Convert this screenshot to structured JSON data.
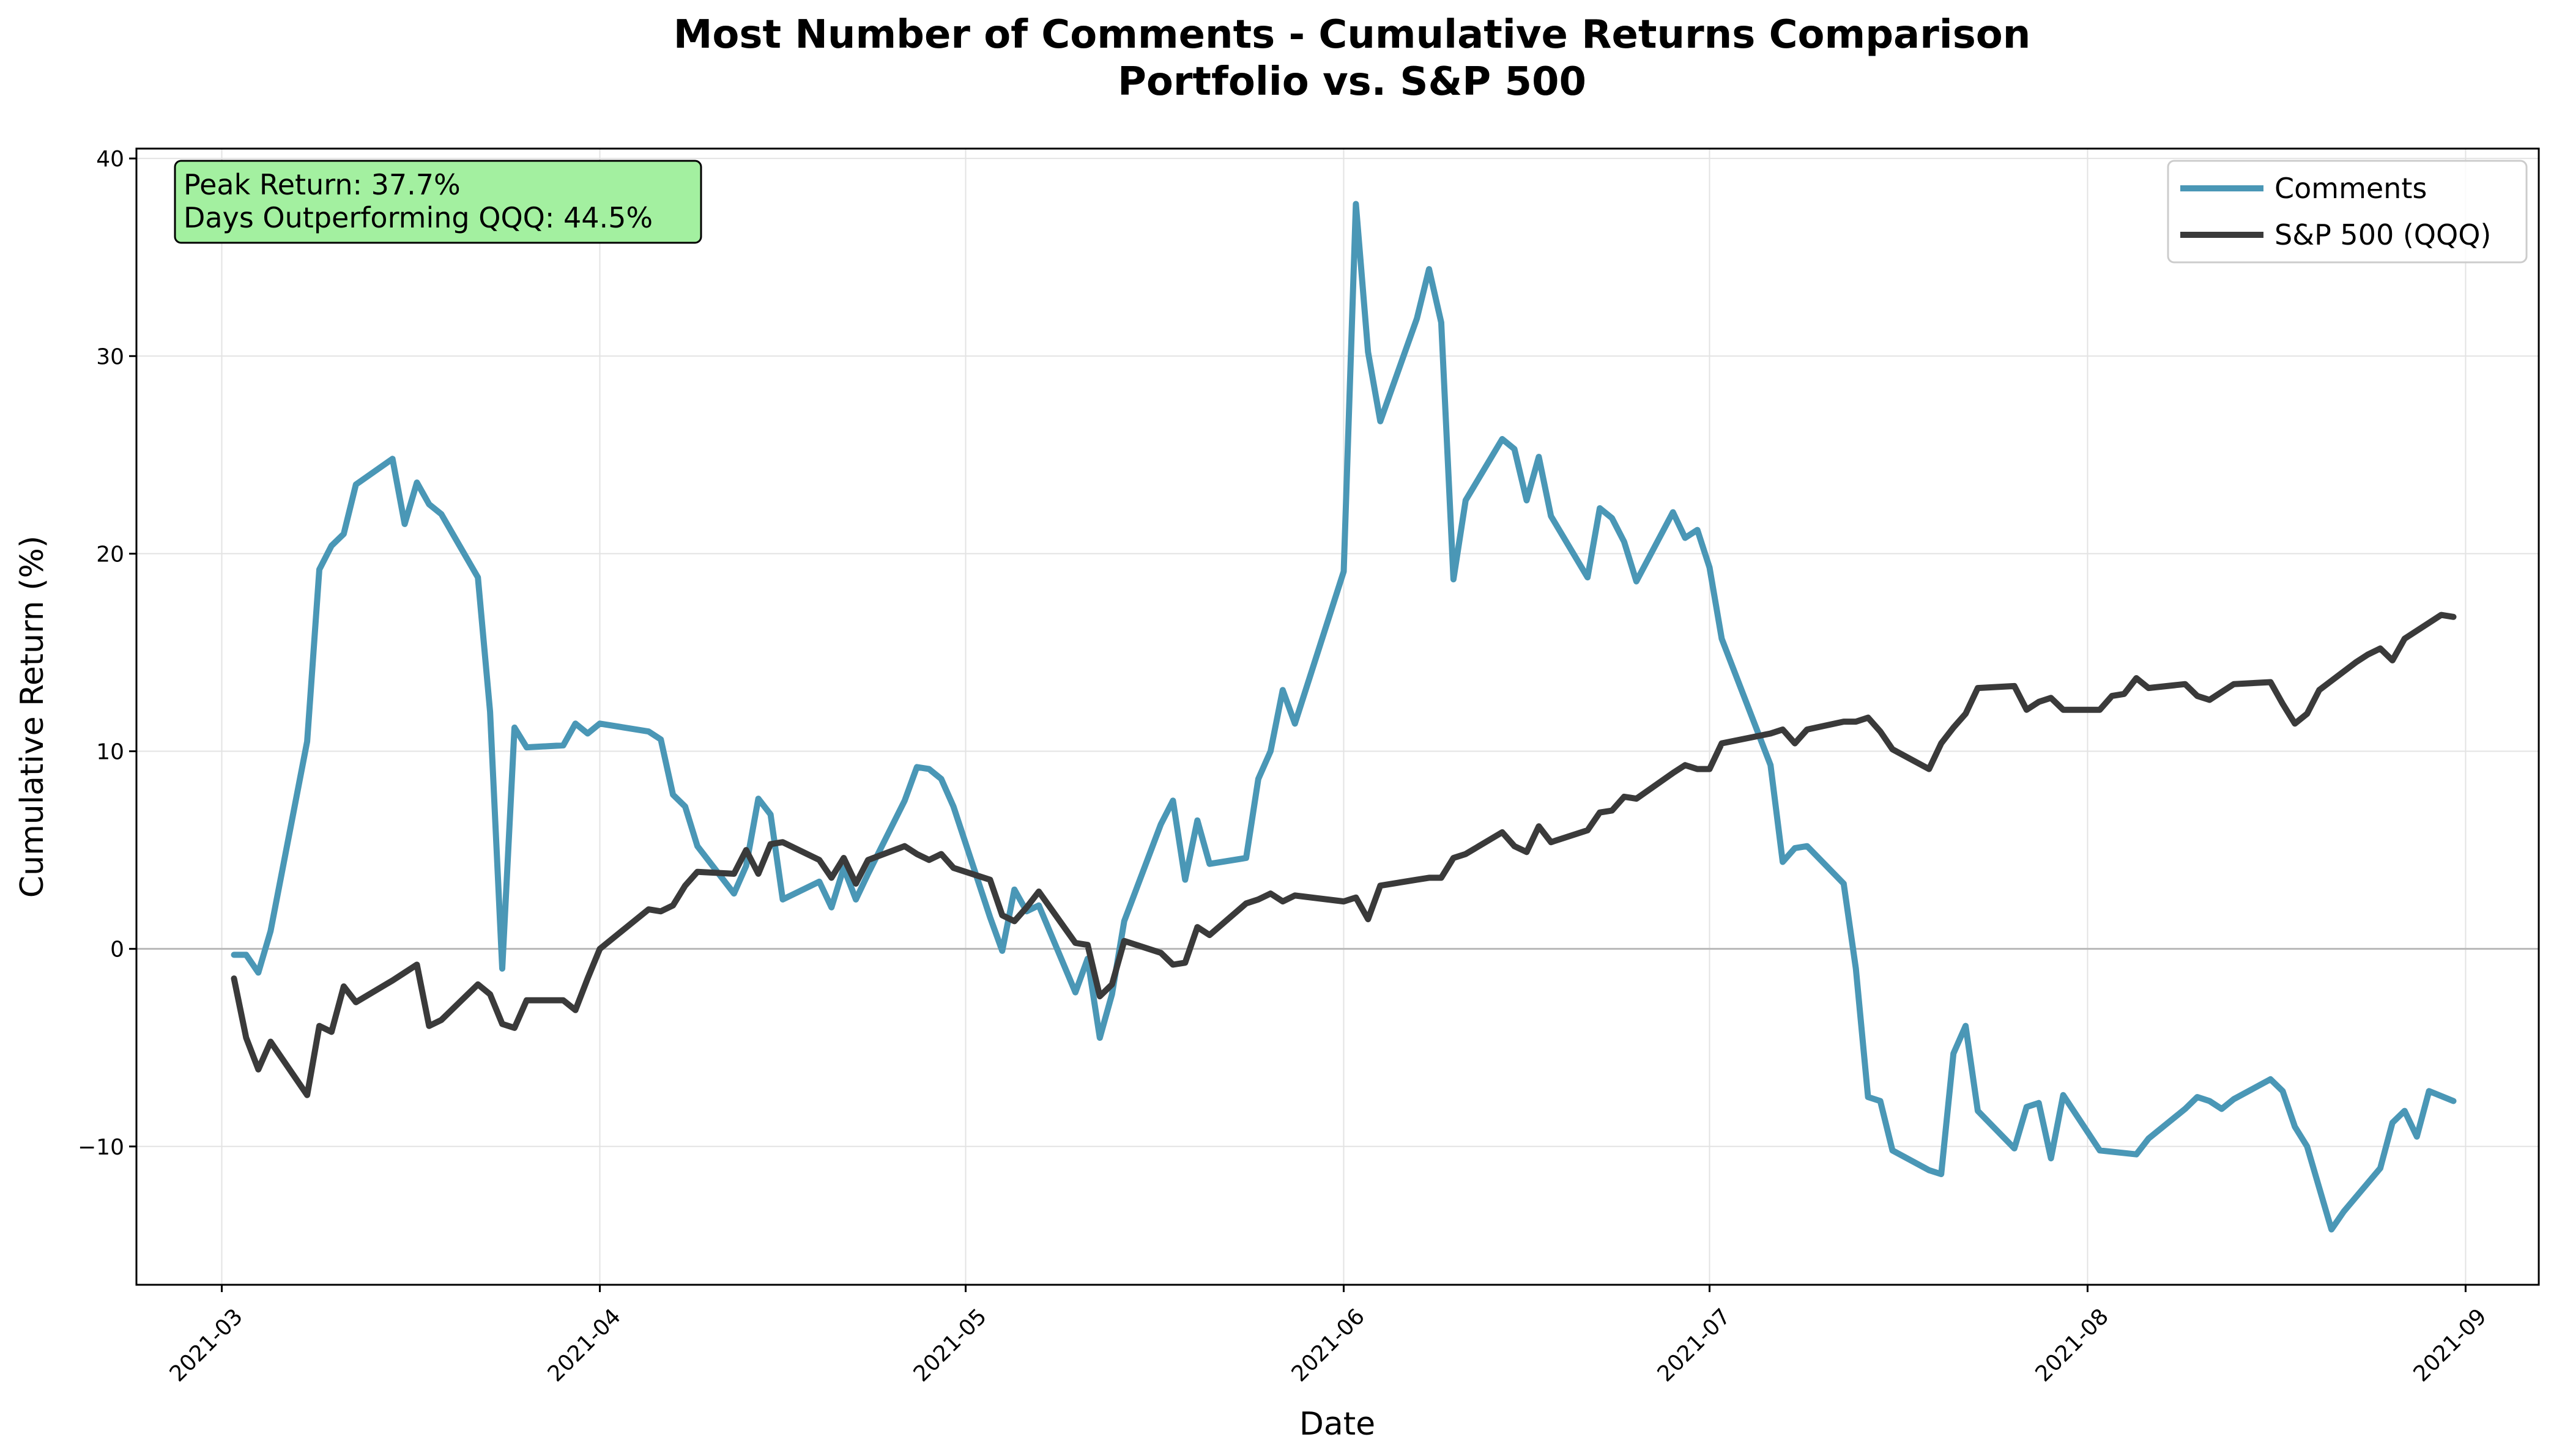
{
  "chart_data": {
    "type": "line",
    "title": "Most Number of Comments - Cumulative Returns Comparison",
    "subtitle": "Portfolio vs. S&P 500",
    "xlabel": "Date",
    "ylabel": "Cumulative Return (%)",
    "x_ticks": [
      "2021-03",
      "2021-04",
      "2021-05",
      "2021-06",
      "2021-07",
      "2021-08",
      "2021-09"
    ],
    "x_range": [
      "2021-02-22",
      "2021-09-07"
    ],
    "y_ticks": [
      -10,
      0,
      10,
      20,
      30,
      40
    ],
    "ylim": [
      -17,
      40.5
    ],
    "grid": true,
    "zero_line": true,
    "legend_position": "top-right",
    "annotation": {
      "lines": [
        "Peak Return: 37.7%",
        "Days Outperforming QQQ: 44.5%"
      ],
      "background": "#a3f0a0"
    },
    "series": [
      {
        "name": "Comments",
        "color": "#4a97b6",
        "points": [
          [
            "2021-03-02",
            -0.3
          ],
          [
            "2021-03-03",
            -0.3
          ],
          [
            "2021-03-04",
            -1.2
          ],
          [
            "2021-03-05",
            0.9
          ],
          [
            "2021-03-08",
            10.5
          ],
          [
            "2021-03-09",
            19.2
          ],
          [
            "2021-03-10",
            20.4
          ],
          [
            "2021-03-11",
            21.0
          ],
          [
            "2021-03-12",
            23.5
          ],
          [
            "2021-03-15",
            24.8
          ],
          [
            "2021-03-16",
            21.5
          ],
          [
            "2021-03-17",
            23.6
          ],
          [
            "2021-03-18",
            22.5
          ],
          [
            "2021-03-19",
            22.0
          ],
          [
            "2021-03-22",
            18.8
          ],
          [
            "2021-03-23",
            12.0
          ],
          [
            "2021-03-24",
            -1.0
          ],
          [
            "2021-03-25",
            11.2
          ],
          [
            "2021-03-26",
            10.2
          ],
          [
            "2021-03-29",
            10.3
          ],
          [
            "2021-03-30",
            11.4
          ],
          [
            "2021-03-31",
            10.9
          ],
          [
            "2021-04-01",
            11.4
          ],
          [
            "2021-04-05",
            11.0
          ],
          [
            "2021-04-06",
            10.6
          ],
          [
            "2021-04-07",
            7.8
          ],
          [
            "2021-04-08",
            7.2
          ],
          [
            "2021-04-09",
            5.2
          ],
          [
            "2021-04-12",
            2.8
          ],
          [
            "2021-04-13",
            4.2
          ],
          [
            "2021-04-14",
            7.6
          ],
          [
            "2021-04-15",
            6.8
          ],
          [
            "2021-04-16",
            2.5
          ],
          [
            "2021-04-19",
            3.4
          ],
          [
            "2021-04-20",
            2.1
          ],
          [
            "2021-04-21",
            4.1
          ],
          [
            "2021-04-22",
            2.5
          ],
          [
            "2021-04-23",
            3.8
          ],
          [
            "2021-04-26",
            7.5
          ],
          [
            "2021-04-27",
            9.2
          ],
          [
            "2021-04-28",
            9.1
          ],
          [
            "2021-04-29",
            8.6
          ],
          [
            "2021-04-30",
            7.2
          ],
          [
            "2021-05-03",
            1.6
          ],
          [
            "2021-05-04",
            -0.1
          ],
          [
            "2021-05-05",
            3.0
          ],
          [
            "2021-05-06",
            1.9
          ],
          [
            "2021-05-07",
            2.2
          ],
          [
            "2021-05-10",
            -2.2
          ],
          [
            "2021-05-11",
            -0.5
          ],
          [
            "2021-05-12",
            -4.5
          ],
          [
            "2021-05-13",
            -2.3
          ],
          [
            "2021-05-14",
            1.4
          ],
          [
            "2021-05-17",
            6.3
          ],
          [
            "2021-05-18",
            7.5
          ],
          [
            "2021-05-19",
            3.5
          ],
          [
            "2021-05-20",
            6.5
          ],
          [
            "2021-05-21",
            4.3
          ],
          [
            "2021-05-24",
            4.6
          ],
          [
            "2021-05-25",
            8.6
          ],
          [
            "2021-05-26",
            10.0
          ],
          [
            "2021-05-27",
            13.1
          ],
          [
            "2021-05-28",
            11.4
          ],
          [
            "2021-06-01",
            19.1
          ],
          [
            "2021-06-02",
            37.7
          ],
          [
            "2021-06-03",
            30.2
          ],
          [
            "2021-06-04",
            26.7
          ],
          [
            "2021-06-07",
            31.9
          ],
          [
            "2021-06-08",
            34.4
          ],
          [
            "2021-06-09",
            31.7
          ],
          [
            "2021-06-10",
            18.7
          ],
          [
            "2021-06-11",
            22.7
          ],
          [
            "2021-06-14",
            25.8
          ],
          [
            "2021-06-15",
            25.3
          ],
          [
            "2021-06-16",
            22.7
          ],
          [
            "2021-06-17",
            24.9
          ],
          [
            "2021-06-18",
            21.9
          ],
          [
            "2021-06-21",
            18.8
          ],
          [
            "2021-06-22",
            22.3
          ],
          [
            "2021-06-23",
            21.8
          ],
          [
            "2021-06-24",
            20.6
          ],
          [
            "2021-06-25",
            18.6
          ],
          [
            "2021-06-28",
            22.1
          ],
          [
            "2021-06-29",
            20.8
          ],
          [
            "2021-06-30",
            21.2
          ],
          [
            "2021-07-01",
            19.3
          ],
          [
            "2021-07-02",
            15.7
          ],
          [
            "2021-07-06",
            9.3
          ],
          [
            "2021-07-07",
            4.4
          ],
          [
            "2021-07-08",
            5.1
          ],
          [
            "2021-07-09",
            5.2
          ],
          [
            "2021-07-12",
            3.3
          ],
          [
            "2021-07-13",
            -1.0
          ],
          [
            "2021-07-14",
            -7.5
          ],
          [
            "2021-07-15",
            -7.7
          ],
          [
            "2021-07-16",
            -10.2
          ],
          [
            "2021-07-19",
            -11.2
          ],
          [
            "2021-07-20",
            -11.4
          ],
          [
            "2021-07-21",
            -5.3
          ],
          [
            "2021-07-22",
            -3.9
          ],
          [
            "2021-07-23",
            -8.2
          ],
          [
            "2021-07-26",
            -10.1
          ],
          [
            "2021-07-27",
            -8.0
          ],
          [
            "2021-07-28",
            -7.8
          ],
          [
            "2021-07-29",
            -10.6
          ],
          [
            "2021-07-30",
            -7.4
          ],
          [
            "2021-08-02",
            -10.2
          ],
          [
            "2021-08-05",
            -10.4
          ],
          [
            "2021-08-06",
            -9.6
          ],
          [
            "2021-08-09",
            -8.1
          ],
          [
            "2021-08-10",
            -7.5
          ],
          [
            "2021-08-11",
            -7.7
          ],
          [
            "2021-08-12",
            -8.1
          ],
          [
            "2021-08-13",
            -7.6
          ],
          [
            "2021-08-16",
            -6.6
          ],
          [
            "2021-08-17",
            -7.2
          ],
          [
            "2021-08-18",
            -9.0
          ],
          [
            "2021-08-19",
            -10.0
          ],
          [
            "2021-08-20",
            -12.1
          ],
          [
            "2021-08-21",
            -14.2
          ],
          [
            "2021-08-22",
            -13.3
          ],
          [
            "2021-08-25",
            -11.1
          ],
          [
            "2021-08-26",
            -8.8
          ],
          [
            "2021-08-27",
            -8.2
          ],
          [
            "2021-08-28",
            -9.5
          ],
          [
            "2021-08-29",
            -7.2
          ],
          [
            "2021-08-31",
            -7.7
          ]
        ]
      },
      {
        "name": "S&P 500 (QQQ)",
        "color": "#3a3a3a",
        "points": [
          [
            "2021-03-02",
            -1.5
          ],
          [
            "2021-03-03",
            -4.5
          ],
          [
            "2021-03-04",
            -6.1
          ],
          [
            "2021-03-05",
            -4.7
          ],
          [
            "2021-03-08",
            -7.4
          ],
          [
            "2021-03-09",
            -3.9
          ],
          [
            "2021-03-10",
            -4.2
          ],
          [
            "2021-03-11",
            -1.9
          ],
          [
            "2021-03-12",
            -2.7
          ],
          [
            "2021-03-15",
            -1.6
          ],
          [
            "2021-03-16",
            -1.2
          ],
          [
            "2021-03-17",
            -0.8
          ],
          [
            "2021-03-18",
            -3.9
          ],
          [
            "2021-03-19",
            -3.6
          ],
          [
            "2021-03-22",
            -1.8
          ],
          [
            "2021-03-23",
            -2.3
          ],
          [
            "2021-03-24",
            -3.8
          ],
          [
            "2021-03-25",
            -4.0
          ],
          [
            "2021-03-26",
            -2.6
          ],
          [
            "2021-03-29",
            -2.6
          ],
          [
            "2021-03-30",
            -3.1
          ],
          [
            "2021-03-31",
            -1.5
          ],
          [
            "2021-04-01",
            0.0
          ],
          [
            "2021-04-05",
            2.0
          ],
          [
            "2021-04-06",
            1.9
          ],
          [
            "2021-04-07",
            2.2
          ],
          [
            "2021-04-08",
            3.2
          ],
          [
            "2021-04-09",
            3.9
          ],
          [
            "2021-04-12",
            3.8
          ],
          [
            "2021-04-13",
            5.0
          ],
          [
            "2021-04-14",
            3.8
          ],
          [
            "2021-04-15",
            5.3
          ],
          [
            "2021-04-16",
            5.4
          ],
          [
            "2021-04-19",
            4.5
          ],
          [
            "2021-04-20",
            3.6
          ],
          [
            "2021-04-21",
            4.6
          ],
          [
            "2021-04-22",
            3.3
          ],
          [
            "2021-04-23",
            4.5
          ],
          [
            "2021-04-26",
            5.2
          ],
          [
            "2021-04-27",
            4.8
          ],
          [
            "2021-04-28",
            4.5
          ],
          [
            "2021-04-29",
            4.8
          ],
          [
            "2021-04-30",
            4.1
          ],
          [
            "2021-05-03",
            3.5
          ],
          [
            "2021-05-04",
            1.7
          ],
          [
            "2021-05-05",
            1.4
          ],
          [
            "2021-05-06",
            2.1
          ],
          [
            "2021-05-07",
            2.9
          ],
          [
            "2021-05-10",
            0.3
          ],
          [
            "2021-05-11",
            0.2
          ],
          [
            "2021-05-12",
            -2.4
          ],
          [
            "2021-05-13",
            -1.8
          ],
          [
            "2021-05-14",
            0.4
          ],
          [
            "2021-05-17",
            -0.2
          ],
          [
            "2021-05-18",
            -0.8
          ],
          [
            "2021-05-19",
            -0.7
          ],
          [
            "2021-05-20",
            1.1
          ],
          [
            "2021-05-21",
            0.7
          ],
          [
            "2021-05-24",
            2.3
          ],
          [
            "2021-05-25",
            2.5
          ],
          [
            "2021-05-26",
            2.8
          ],
          [
            "2021-05-27",
            2.4
          ],
          [
            "2021-05-28",
            2.7
          ],
          [
            "2021-06-01",
            2.4
          ],
          [
            "2021-06-02",
            2.6
          ],
          [
            "2021-06-03",
            1.5
          ],
          [
            "2021-06-04",
            3.2
          ],
          [
            "2021-06-07",
            3.5
          ],
          [
            "2021-06-08",
            3.6
          ],
          [
            "2021-06-09",
            3.6
          ],
          [
            "2021-06-10",
            4.6
          ],
          [
            "2021-06-11",
            4.8
          ],
          [
            "2021-06-14",
            5.9
          ],
          [
            "2021-06-15",
            5.2
          ],
          [
            "2021-06-16",
            4.9
          ],
          [
            "2021-06-17",
            6.2
          ],
          [
            "2021-06-18",
            5.4
          ],
          [
            "2021-06-21",
            6.0
          ],
          [
            "2021-06-22",
            6.9
          ],
          [
            "2021-06-23",
            7.0
          ],
          [
            "2021-06-24",
            7.7
          ],
          [
            "2021-06-25",
            7.6
          ],
          [
            "2021-06-28",
            8.9
          ],
          [
            "2021-06-29",
            9.3
          ],
          [
            "2021-06-30",
            9.1
          ],
          [
            "2021-07-01",
            9.1
          ],
          [
            "2021-07-02",
            10.4
          ],
          [
            "2021-07-06",
            10.9
          ],
          [
            "2021-07-07",
            11.1
          ],
          [
            "2021-07-08",
            10.4
          ],
          [
            "2021-07-09",
            11.1
          ],
          [
            "2021-07-12",
            11.5
          ],
          [
            "2021-07-13",
            11.5
          ],
          [
            "2021-07-14",
            11.7
          ],
          [
            "2021-07-15",
            11.0
          ],
          [
            "2021-07-16",
            10.1
          ],
          [
            "2021-07-19",
            9.1
          ],
          [
            "2021-07-20",
            10.4
          ],
          [
            "2021-07-21",
            11.2
          ],
          [
            "2021-07-22",
            11.9
          ],
          [
            "2021-07-23",
            13.2
          ],
          [
            "2021-07-26",
            13.3
          ],
          [
            "2021-07-27",
            12.1
          ],
          [
            "2021-07-28",
            12.5
          ],
          [
            "2021-07-29",
            12.7
          ],
          [
            "2021-07-30",
            12.1
          ],
          [
            "2021-08-02",
            12.1
          ],
          [
            "2021-08-03",
            12.8
          ],
          [
            "2021-08-04",
            12.9
          ],
          [
            "2021-08-05",
            13.7
          ],
          [
            "2021-08-06",
            13.2
          ],
          [
            "2021-08-09",
            13.4
          ],
          [
            "2021-08-10",
            12.8
          ],
          [
            "2021-08-11",
            12.6
          ],
          [
            "2021-08-12",
            13.0
          ],
          [
            "2021-08-13",
            13.4
          ],
          [
            "2021-08-16",
            13.5
          ],
          [
            "2021-08-17",
            12.4
          ],
          [
            "2021-08-18",
            11.4
          ],
          [
            "2021-08-19",
            11.9
          ],
          [
            "2021-08-20",
            13.1
          ],
          [
            "2021-08-23",
            14.5
          ],
          [
            "2021-08-24",
            14.9
          ],
          [
            "2021-08-25",
            15.2
          ],
          [
            "2021-08-26",
            14.6
          ],
          [
            "2021-08-27",
            15.7
          ],
          [
            "2021-08-30",
            16.9
          ],
          [
            "2021-08-31",
            16.8
          ]
        ]
      }
    ]
  }
}
